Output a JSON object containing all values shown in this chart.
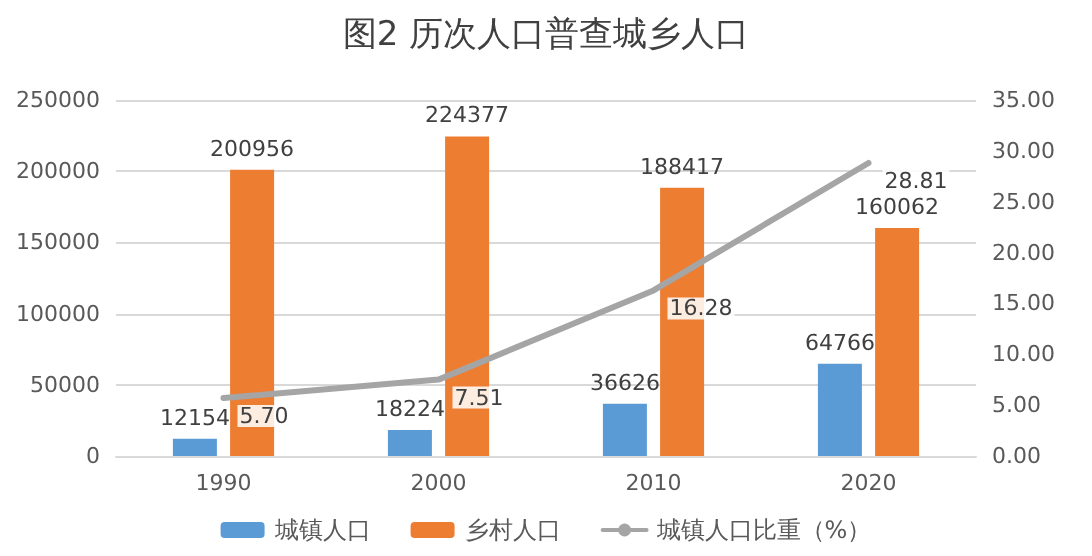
{
  "chart_data": {
    "type": "bar",
    "title": "图2 历次人口普查城乡人口",
    "categories": [
      "1990",
      "2000",
      "2010",
      "2020"
    ],
    "series": [
      {
        "name": "城镇人口",
        "color": "#5b9bd5",
        "values": [
          12154,
          18224,
          36626,
          64766
        ],
        "value_labels": [
          "12154",
          "18224",
          "36626",
          "64766"
        ]
      },
      {
        "name": "乡村人口",
        "color": "#ed7d31",
        "values": [
          200956,
          224377,
          188417,
          160062
        ],
        "value_labels": [
          "200956",
          "224377",
          "188417",
          "160062"
        ]
      },
      {
        "name": "城镇人口比重（%）",
        "type": "line",
        "axis": "y2",
        "color": "#a5a5a5",
        "marker": "none",
        "values": [
          5.7,
          7.51,
          16.28,
          28.81
        ],
        "value_labels": [
          "5.70",
          "7.51",
          "16.28",
          "28.81"
        ]
      }
    ],
    "ylim": [
      0,
      250000
    ],
    "yticks": [
      0,
      50000,
      100000,
      150000,
      200000,
      250000
    ],
    "y2lim": [
      0,
      35
    ],
    "y2ticks": [
      {
        "value": 0,
        "label": "0.00"
      },
      {
        "value": 5,
        "label": "5.00"
      },
      {
        "value": 10,
        "label": "10.00"
      },
      {
        "value": 15,
        "label": "15.00"
      },
      {
        "value": 20,
        "label": "20.00"
      },
      {
        "value": 25,
        "label": "25.00"
      },
      {
        "value": 30,
        "label": "30.00"
      },
      {
        "value": 35,
        "label": "35.00"
      }
    ],
    "grid": "y",
    "legend": "bottom"
  }
}
